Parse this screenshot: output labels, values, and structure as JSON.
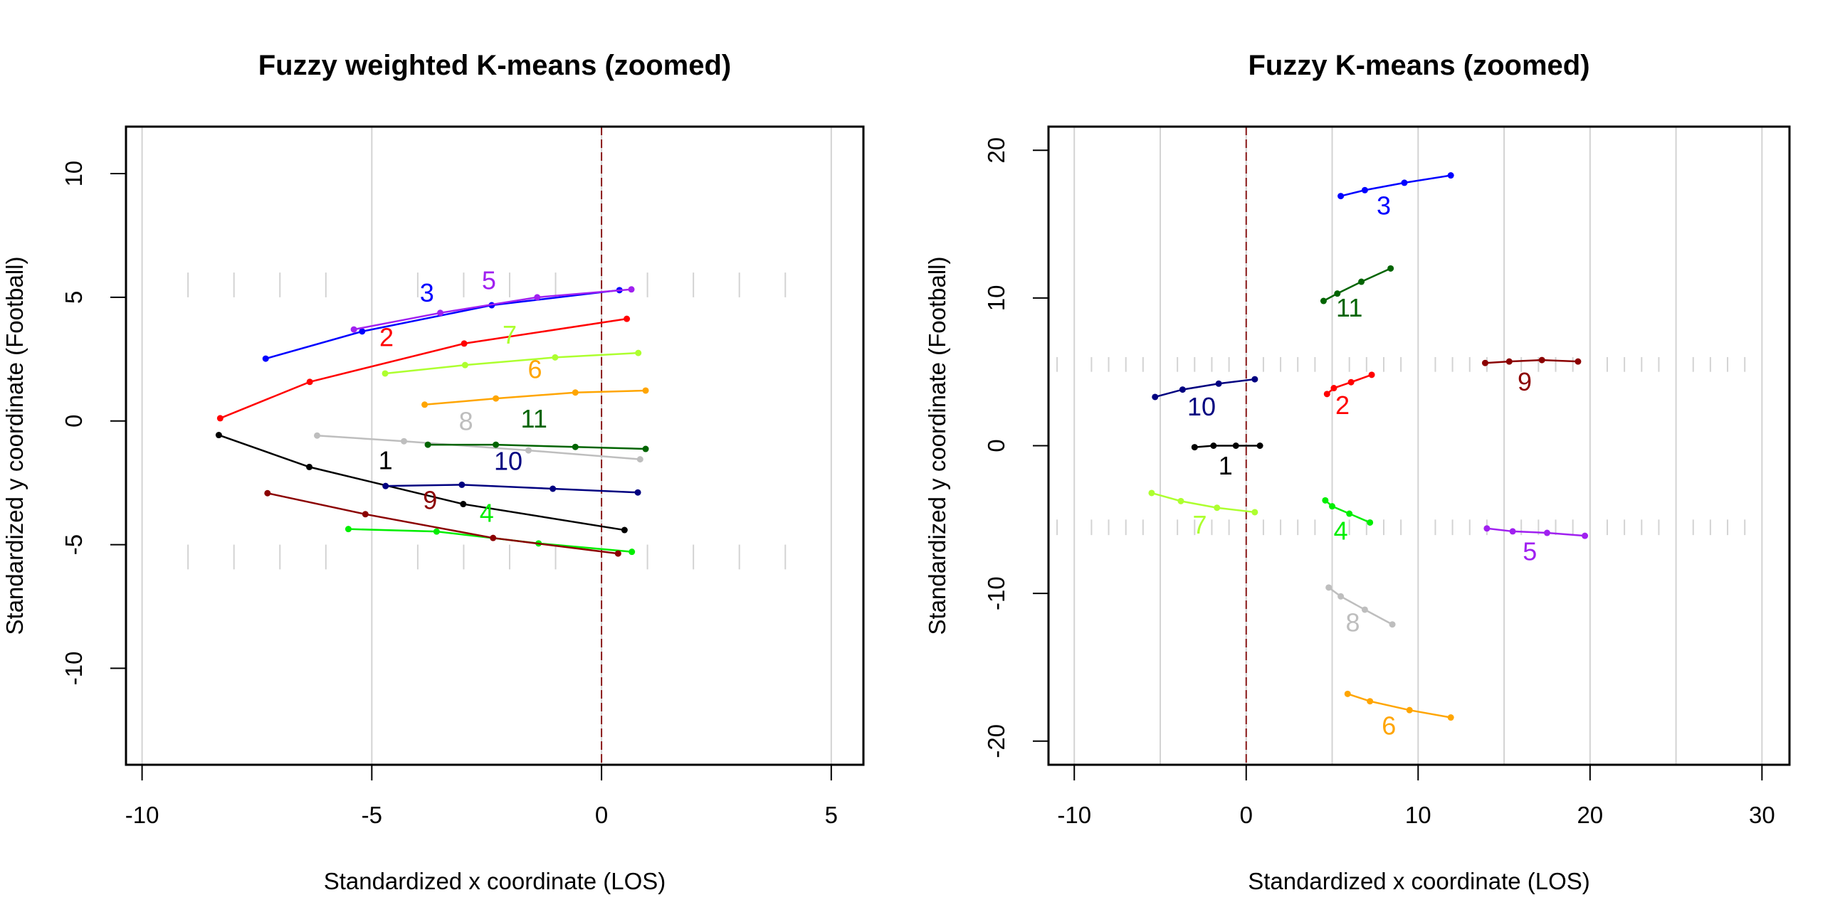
{
  "chart_data": [
    {
      "type": "line",
      "title": "Fuzzy weighted K-means (zoomed)",
      "xlabel": "Standardized x coordinate (LOS)",
      "ylabel": "Standardized y coordinate (Football)",
      "xlim": [
        -10.35,
        5.7
      ],
      "ylim": [
        -13.9,
        11.9
      ],
      "xticks": [
        -10,
        -5,
        0,
        5
      ],
      "xtick_labels": [
        "-10",
        "-5",
        "0",
        "5"
      ],
      "yticks": [
        -10,
        -5,
        0,
        5,
        10
      ],
      "ytick_labels": [
        "-10",
        "-5",
        "0",
        "5",
        "10"
      ],
      "grid": true,
      "vgrid": [
        -10,
        -5,
        0,
        5
      ],
      "hash_marks": {
        "x": [
          -9,
          -8,
          -7,
          -6,
          -4,
          -3,
          -2,
          -1,
          1,
          2,
          3,
          4
        ],
        "y_ranges": [
          [
            5.0,
            6.0
          ],
          [
            -5.0,
            -6.0
          ]
        ]
      },
      "reference_line": {
        "x": 0,
        "color": "#8b1a1a",
        "style": "dashed"
      },
      "series": [
        {
          "name": "1",
          "color": "#000000",
          "x": [
            -8.33,
            -6.36,
            -3.01,
            0.5
          ],
          "y": [
            -0.57,
            -1.86,
            -3.36,
            -4.41
          ],
          "label_pos": [
            -4.7,
            -1.67
          ]
        },
        {
          "name": "2",
          "color": "#ff0000",
          "x": [
            -8.3,
            -6.35,
            -2.99,
            0.55
          ],
          "y": [
            0.11,
            1.58,
            3.13,
            4.13
          ],
          "label_pos": [
            -4.68,
            3.3
          ]
        },
        {
          "name": "3",
          "color": "#0000ff",
          "x": [
            -7.31,
            -5.21,
            -2.39,
            0.39
          ],
          "y": [
            2.52,
            3.62,
            4.68,
            5.29
          ],
          "label_pos": [
            -3.8,
            5.1
          ]
        },
        {
          "name": "4",
          "color": "#00ee00",
          "x": [
            -5.51,
            -3.59,
            -1.37,
            0.66
          ],
          "y": [
            -4.37,
            -4.47,
            -4.95,
            -5.29
          ],
          "label_pos": [
            -2.5,
            -3.8
          ]
        },
        {
          "name": "5",
          "color": "#a020f0",
          "x": [
            -5.39,
            -3.51,
            -1.4,
            0.65
          ],
          "y": [
            3.7,
            4.37,
            5.0,
            5.32
          ],
          "label_pos": [
            -2.45,
            5.6
          ]
        },
        {
          "name": "6",
          "color": "#ffa500",
          "x": [
            -3.85,
            -2.3,
            -0.57,
            0.96
          ],
          "y": [
            0.66,
            0.91,
            1.15,
            1.23
          ],
          "label_pos": [
            -1.45,
            2.0
          ]
        },
        {
          "name": "7",
          "color": "#adff2f",
          "x": [
            -4.71,
            -2.97,
            -1.01,
            0.8
          ],
          "y": [
            1.92,
            2.26,
            2.57,
            2.75
          ],
          "label_pos": [
            -2.0,
            3.4
          ]
        },
        {
          "name": "8",
          "color": "#bebebe",
          "x": [
            -6.19,
            -4.3,
            -1.59,
            0.84
          ],
          "y": [
            -0.59,
            -0.82,
            -1.19,
            -1.55
          ],
          "label_pos": [
            -2.95,
            -0.1
          ]
        },
        {
          "name": "9",
          "color": "#8b0000",
          "x": [
            -7.27,
            -5.14,
            -2.36,
            0.36
          ],
          "y": [
            -2.92,
            -3.77,
            -4.73,
            -5.36
          ],
          "label_pos": [
            -3.73,
            -3.28
          ]
        },
        {
          "name": "10",
          "color": "#000080",
          "x": [
            -4.7,
            -3.04,
            -1.06,
            0.79
          ],
          "y": [
            -2.63,
            -2.58,
            -2.74,
            -2.89
          ],
          "label_pos": [
            -2.03,
            -1.7
          ]
        },
        {
          "name": "11",
          "color": "#006400",
          "x": [
            -3.78,
            -2.3,
            -0.57,
            0.96
          ],
          "y": [
            -0.96,
            -0.96,
            -1.05,
            -1.13
          ],
          "label_pos": [
            -1.47,
            0.0
          ]
        }
      ]
    },
    {
      "type": "line",
      "title": "Fuzzy K-means (zoomed)",
      "xlabel": "Standardized x coordinate (LOS)",
      "ylabel": "Standardized y coordinate (Football)",
      "xlim": [
        -11.5,
        31.6
      ],
      "ylim": [
        -21.6,
        21.6
      ],
      "xticks": [
        -10,
        0,
        10,
        20,
        30
      ],
      "xtick_labels": [
        "-10",
        "0",
        "10",
        "20",
        "30"
      ],
      "yticks": [
        -20,
        -10,
        0,
        10,
        20
      ],
      "ytick_labels": [
        "-20",
        "-10",
        "0",
        "10",
        "20"
      ],
      "grid": true,
      "vgrid": [
        -10,
        -5,
        0,
        5,
        10,
        15,
        20,
        25,
        30
      ],
      "hash_marks": {
        "x": [
          -11,
          -9,
          -8,
          -7,
          -6,
          -4,
          -3,
          -2,
          -1,
          1,
          2,
          3,
          4,
          6,
          7,
          8,
          9,
          11,
          12,
          13,
          14,
          16,
          17,
          18,
          19,
          21,
          22,
          23,
          24,
          26,
          27,
          28,
          29
        ],
        "y_ranges": [
          [
            5.0,
            6.0
          ],
          [
            -5.0,
            -6.05
          ]
        ]
      },
      "reference_line": {
        "x": 0,
        "color": "#8b1a1a",
        "style": "dashed"
      },
      "series": [
        {
          "name": "1",
          "color": "#000000",
          "x": [
            -3.0,
            -1.9,
            -0.6,
            0.8
          ],
          "y": [
            -0.1,
            0.0,
            0.0,
            0.0
          ],
          "label_pos": [
            -1.2,
            -1.5
          ]
        },
        {
          "name": "2",
          "color": "#ff0000",
          "x": [
            4.7,
            5.1,
            6.1,
            7.3
          ],
          "y": [
            3.5,
            3.9,
            4.3,
            4.8
          ],
          "label_pos": [
            5.6,
            2.6
          ]
        },
        {
          "name": "3",
          "color": "#0000ff",
          "x": [
            5.5,
            6.9,
            9.2,
            11.9
          ],
          "y": [
            16.9,
            17.3,
            17.8,
            18.3
          ],
          "label_pos": [
            8.0,
            16.1
          ]
        },
        {
          "name": "4",
          "color": "#00ee00",
          "x": [
            4.6,
            5.0,
            6.0,
            7.2
          ],
          "y": [
            -3.7,
            -4.1,
            -4.6,
            -5.2
          ],
          "label_pos": [
            5.5,
            -5.9
          ]
        },
        {
          "name": "5",
          "color": "#a020f0",
          "x": [
            14.0,
            15.5,
            17.5,
            19.7
          ],
          "y": [
            -5.6,
            -5.8,
            -5.9,
            -6.1
          ],
          "label_pos": [
            16.5,
            -7.3
          ]
        },
        {
          "name": "6",
          "color": "#ffa500",
          "x": [
            5.9,
            7.2,
            9.5,
            11.9
          ],
          "y": [
            -16.8,
            -17.3,
            -17.9,
            -18.4
          ],
          "label_pos": [
            8.3,
            -19.1
          ]
        },
        {
          "name": "7",
          "color": "#adff2f",
          "x": [
            -5.5,
            -3.8,
            -1.7,
            0.5
          ],
          "y": [
            -3.2,
            -3.75,
            -4.2,
            -4.5
          ],
          "label_pos": [
            -2.7,
            -5.5
          ]
        },
        {
          "name": "8",
          "color": "#bebebe",
          "x": [
            4.8,
            5.5,
            6.9,
            8.5
          ],
          "y": [
            -9.6,
            -10.2,
            -11.1,
            -12.1
          ],
          "label_pos": [
            6.2,
            -12.1
          ]
        },
        {
          "name": "9",
          "color": "#8b0000",
          "x": [
            13.9,
            15.3,
            17.2,
            19.3
          ],
          "y": [
            5.6,
            5.7,
            5.8,
            5.7
          ],
          "label_pos": [
            16.2,
            4.2
          ]
        },
        {
          "name": "10",
          "color": "#000080",
          "x": [
            -5.3,
            -3.7,
            -1.6,
            0.5
          ],
          "y": [
            3.3,
            3.8,
            4.2,
            4.5
          ],
          "label_pos": [
            -2.6,
            2.5
          ]
        },
        {
          "name": "11",
          "color": "#006400",
          "x": [
            4.5,
            5.3,
            6.7,
            8.4
          ],
          "y": [
            9.8,
            10.3,
            11.1,
            12.0
          ],
          "label_pos": [
            6.0,
            9.2
          ]
        }
      ]
    }
  ]
}
